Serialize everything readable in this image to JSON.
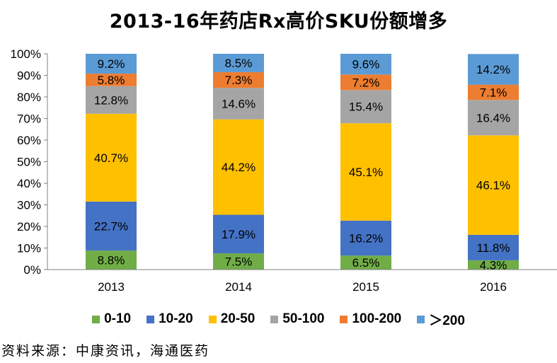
{
  "chart_data": {
    "type": "bar",
    "stacked": true,
    "percent": true,
    "title": "2013-16年药店Rx高价SKU份额增多",
    "categories": [
      "2013",
      "2014",
      "2015",
      "2016"
    ],
    "series": [
      {
        "name": "0-10",
        "color": "#70AD47",
        "values": [
          8.8,
          7.5,
          6.5,
          4.3
        ]
      },
      {
        "name": "10-20",
        "color": "#4472C4",
        "values": [
          22.7,
          17.9,
          16.2,
          11.8
        ]
      },
      {
        "name": "20-50",
        "color": "#FFC000",
        "values": [
          40.7,
          44.2,
          45.1,
          46.1
        ]
      },
      {
        "name": "50-100",
        "color": "#A5A5A5",
        "values": [
          12.8,
          14.6,
          15.4,
          16.4
        ]
      },
      {
        "name": "100-200",
        "color": "#ED7D31",
        "values": [
          5.8,
          7.3,
          7.2,
          7.1
        ]
      },
      {
        "name": "＞200",
        "color": "#5B9BD5",
        "values": [
          9.2,
          8.5,
          9.6,
          14.2
        ]
      }
    ],
    "ylim": [
      0,
      100
    ],
    "yticks": [
      "0%",
      "10%",
      "20%",
      "30%",
      "40%",
      "50%",
      "60%",
      "70%",
      "80%",
      "90%",
      "100%"
    ],
    "legend_position": "bottom",
    "grid": false
  },
  "source": "资料来源：中康资讯，海通医药"
}
